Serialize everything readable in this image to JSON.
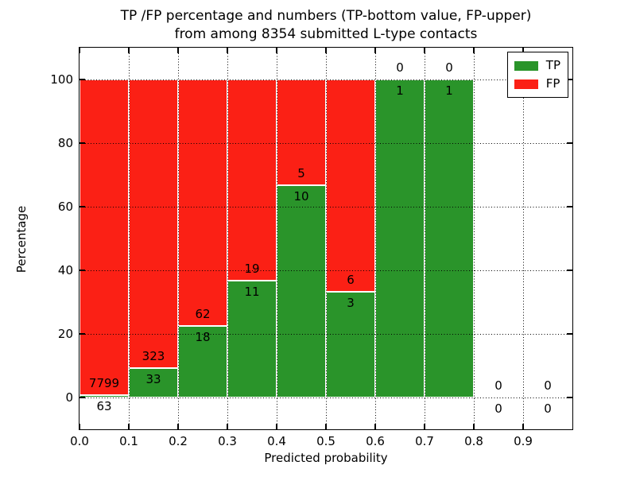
{
  "figure": {
    "title_line1": "TP /FP percentage and numbers (TP-bottom value, FP-upper)",
    "title_line2": "from among 8354 submitted L-type contacts"
  },
  "chart_data": {
    "type": "bar",
    "stacked": true,
    "units": "percent",
    "title": "TP /FP percentage and numbers (TP-bottom value, FP-upper) from among 8354 submitted L-type contacts",
    "xlabel": "Predicted probability",
    "ylabel": "Percentage",
    "xlim": [
      0,
      1
    ],
    "ylim": [
      -10,
      110
    ],
    "x_tick_values": [
      0.0,
      0.1,
      0.2,
      0.3,
      0.4,
      0.5,
      0.6,
      0.7,
      0.8,
      0.9
    ],
    "x_tick_labels": [
      "0.0",
      "0.1",
      "0.2",
      "0.3",
      "0.4",
      "0.5",
      "0.6",
      "0.7",
      "0.8",
      "0.9"
    ],
    "y_tick_values": [
      0,
      20,
      40,
      60,
      80,
      100
    ],
    "y_tick_labels": [
      "0",
      "20",
      "40",
      "60",
      "80",
      "100"
    ],
    "grid": "dotted",
    "legend_position": "upper right",
    "total_submitted": 8354,
    "series": [
      {
        "name": "TP",
        "color": "#2a942a"
      },
      {
        "name": "FP",
        "color": "#fb2015"
      }
    ],
    "colors": {
      "tp": "#2a942a",
      "fp": "#fb2015",
      "bar_edge": "#ffffff",
      "grid": "#000000"
    },
    "bins": [
      {
        "x_start": 0.0,
        "x_end": 0.1,
        "tp_count": 63,
        "fp_count": 7799,
        "tp_pct": 0.8,
        "fp_pct": 99.2
      },
      {
        "x_start": 0.1,
        "x_end": 0.2,
        "tp_count": 33,
        "fp_count": 323,
        "tp_pct": 9.27,
        "fp_pct": 90.73
      },
      {
        "x_start": 0.2,
        "x_end": 0.3,
        "tp_count": 18,
        "fp_count": 62,
        "tp_pct": 22.5,
        "fp_pct": 77.5
      },
      {
        "x_start": 0.3,
        "x_end": 0.4,
        "tp_count": 11,
        "fp_count": 19,
        "tp_pct": 36.67,
        "fp_pct": 63.33
      },
      {
        "x_start": 0.4,
        "x_end": 0.5,
        "tp_count": 10,
        "fp_count": 5,
        "tp_pct": 66.67,
        "fp_pct": 33.33
      },
      {
        "x_start": 0.5,
        "x_end": 0.6,
        "tp_count": 3,
        "fp_count": 6,
        "tp_pct": 33.33,
        "fp_pct": 66.67
      },
      {
        "x_start": 0.6,
        "x_end": 0.7,
        "tp_count": 1,
        "fp_count": 0,
        "tp_pct": 100.0,
        "fp_pct": 0.0
      },
      {
        "x_start": 0.7,
        "x_end": 0.8,
        "tp_count": 1,
        "fp_count": 0,
        "tp_pct": 100.0,
        "fp_pct": 0.0
      },
      {
        "x_start": 0.8,
        "x_end": 0.9,
        "tp_count": 0,
        "fp_count": 0,
        "tp_pct": 0.0,
        "fp_pct": 0.0
      },
      {
        "x_start": 0.9,
        "x_end": 1.0,
        "tp_count": 0,
        "fp_count": 0,
        "tp_pct": 0.0,
        "fp_pct": 0.0
      }
    ]
  }
}
